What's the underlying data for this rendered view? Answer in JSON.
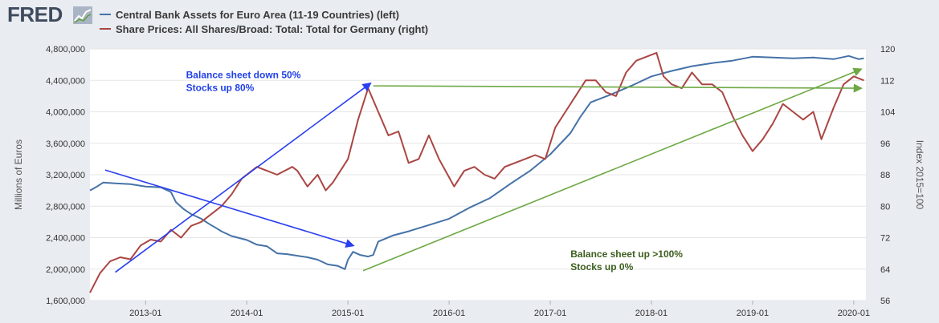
{
  "logo": {
    "text": "FRED"
  },
  "legend": [
    {
      "label": "Central Bank Assets for Euro Area (11-19 Countries) (left)",
      "color": "#4572a7"
    },
    {
      "label": "Share Prices: All Shares/Broad: Total: Total for Germany (right)",
      "color": "#aa4643"
    }
  ],
  "chart_data": {
    "type": "line",
    "ylabel_left": "Millions of Euros",
    "ylabel_right": "Index 2015=100",
    "xlim": [
      2012.45,
      2020.12
    ],
    "ylim_left": [
      1600000,
      4800000
    ],
    "ylim_right": [
      56,
      120
    ],
    "yticks_left": [
      1600000,
      2000000,
      2400000,
      2800000,
      3200000,
      3600000,
      4000000,
      4400000,
      4800000
    ],
    "yticks_left_labels": [
      "1,600,000",
      "2,000,000",
      "2,400,000",
      "2,800,000",
      "3,200,000",
      "3,600,000",
      "4,000,000",
      "4,400,000",
      "4,800,000"
    ],
    "yticks_right": [
      56,
      64,
      72,
      80,
      88,
      96,
      104,
      112,
      120
    ],
    "yticks_right_labels": [
      "56",
      "64",
      "72",
      "80",
      "88",
      "96",
      "104",
      "112",
      "120"
    ],
    "xticks": [
      2013,
      2014,
      2015,
      2016,
      2017,
      2018,
      2019,
      2020
    ],
    "xticks_labels": [
      "2013-01",
      "2014-01",
      "2015-01",
      "2016-01",
      "2017-01",
      "2018-01",
      "2019-01",
      "2020-01"
    ],
    "grid": true,
    "series": [
      {
        "name": "Central Bank Assets for Euro Area (11-19 Countries) (left)",
        "axis": "left",
        "color": "#4572a7",
        "points": [
          [
            2012.45,
            3000000
          ],
          [
            2012.52,
            3050000
          ],
          [
            2012.58,
            3100000
          ],
          [
            2012.7,
            3090000
          ],
          [
            2012.85,
            3080000
          ],
          [
            2013.0,
            3050000
          ],
          [
            2013.15,
            3040000
          ],
          [
            2013.25,
            2980000
          ],
          [
            2013.3,
            2850000
          ],
          [
            2013.38,
            2760000
          ],
          [
            2013.45,
            2700000
          ],
          [
            2013.55,
            2640000
          ],
          [
            2013.62,
            2580000
          ],
          [
            2013.7,
            2520000
          ],
          [
            2013.75,
            2480000
          ],
          [
            2013.85,
            2420000
          ],
          [
            2014.0,
            2370000
          ],
          [
            2014.1,
            2310000
          ],
          [
            2014.2,
            2290000
          ],
          [
            2014.3,
            2200000
          ],
          [
            2014.4,
            2190000
          ],
          [
            2014.5,
            2170000
          ],
          [
            2014.6,
            2150000
          ],
          [
            2014.7,
            2120000
          ],
          [
            2014.8,
            2060000
          ],
          [
            2014.9,
            2040000
          ],
          [
            2014.97,
            2000000
          ],
          [
            2015.0,
            2120000
          ],
          [
            2015.05,
            2220000
          ],
          [
            2015.12,
            2180000
          ],
          [
            2015.2,
            2160000
          ],
          [
            2015.25,
            2180000
          ],
          [
            2015.3,
            2350000
          ],
          [
            2015.45,
            2430000
          ],
          [
            2015.6,
            2480000
          ],
          [
            2015.8,
            2560000
          ],
          [
            2016.0,
            2640000
          ],
          [
            2016.2,
            2780000
          ],
          [
            2016.4,
            2900000
          ],
          [
            2016.6,
            3080000
          ],
          [
            2016.8,
            3250000
          ],
          [
            2017.0,
            3460000
          ],
          [
            2017.2,
            3730000
          ],
          [
            2017.3,
            3940000
          ],
          [
            2017.4,
            4120000
          ],
          [
            2017.6,
            4220000
          ],
          [
            2017.8,
            4330000
          ],
          [
            2018.0,
            4450000
          ],
          [
            2018.2,
            4520000
          ],
          [
            2018.4,
            4580000
          ],
          [
            2018.6,
            4620000
          ],
          [
            2018.8,
            4650000
          ],
          [
            2019.0,
            4700000
          ],
          [
            2019.2,
            4690000
          ],
          [
            2019.4,
            4680000
          ],
          [
            2019.6,
            4690000
          ],
          [
            2019.8,
            4670000
          ],
          [
            2019.95,
            4710000
          ],
          [
            2020.05,
            4670000
          ],
          [
            2020.1,
            4680000
          ]
        ]
      },
      {
        "name": "Share Prices: All Shares/Broad: Total: Total for Germany (right)",
        "axis": "right",
        "color": "#aa4643",
        "points": [
          [
            2012.45,
            58
          ],
          [
            2012.55,
            63
          ],
          [
            2012.65,
            66
          ],
          [
            2012.75,
            67
          ],
          [
            2012.85,
            66.5
          ],
          [
            2012.95,
            70
          ],
          [
            2013.05,
            71.5
          ],
          [
            2013.15,
            71
          ],
          [
            2013.25,
            74
          ],
          [
            2013.35,
            72
          ],
          [
            2013.45,
            75
          ],
          [
            2013.55,
            76
          ],
          [
            2013.65,
            78
          ],
          [
            2013.75,
            80
          ],
          [
            2013.85,
            83
          ],
          [
            2013.95,
            87
          ],
          [
            2014.1,
            90
          ],
          [
            2014.2,
            89
          ],
          [
            2014.3,
            88
          ],
          [
            2014.45,
            90
          ],
          [
            2014.5,
            89
          ],
          [
            2014.6,
            85
          ],
          [
            2014.7,
            88
          ],
          [
            2014.78,
            84
          ],
          [
            2014.85,
            86
          ],
          [
            2015.0,
            92
          ],
          [
            2015.1,
            102
          ],
          [
            2015.2,
            110
          ],
          [
            2015.3,
            104
          ],
          [
            2015.4,
            98
          ],
          [
            2015.5,
            99
          ],
          [
            2015.6,
            91
          ],
          [
            2015.7,
            92
          ],
          [
            2015.8,
            98
          ],
          [
            2015.9,
            92
          ],
          [
            2016.05,
            85
          ],
          [
            2016.15,
            89
          ],
          [
            2016.25,
            90
          ],
          [
            2016.35,
            88
          ],
          [
            2016.45,
            87
          ],
          [
            2016.55,
            90
          ],
          [
            2016.65,
            91
          ],
          [
            2016.75,
            92
          ],
          [
            2016.85,
            93
          ],
          [
            2016.95,
            92
          ],
          [
            2017.05,
            100
          ],
          [
            2017.15,
            104
          ],
          [
            2017.25,
            108
          ],
          [
            2017.35,
            112
          ],
          [
            2017.45,
            112
          ],
          [
            2017.55,
            109
          ],
          [
            2017.65,
            108
          ],
          [
            2017.75,
            114
          ],
          [
            2017.85,
            117
          ],
          [
            2017.95,
            118
          ],
          [
            2018.05,
            119
          ],
          [
            2018.12,
            113
          ],
          [
            2018.2,
            111
          ],
          [
            2018.3,
            110
          ],
          [
            2018.4,
            114
          ],
          [
            2018.5,
            111
          ],
          [
            2018.6,
            111
          ],
          [
            2018.7,
            109
          ],
          [
            2018.8,
            103
          ],
          [
            2018.9,
            98
          ],
          [
            2019.0,
            94
          ],
          [
            2019.1,
            97
          ],
          [
            2019.2,
            101
          ],
          [
            2019.3,
            106
          ],
          [
            2019.4,
            104
          ],
          [
            2019.5,
            102
          ],
          [
            2019.6,
            104
          ],
          [
            2019.68,
            97
          ],
          [
            2019.8,
            105
          ],
          [
            2019.9,
            111
          ],
          [
            2020.0,
            113
          ],
          [
            2020.1,
            112
          ]
        ]
      }
    ],
    "annotations": [
      {
        "lines": [
          "Balance sheet down 50%",
          "Stocks up 80%"
        ],
        "color": "#1f3fe8",
        "x": 2013.4,
        "y_left": 4430000
      },
      {
        "lines": [
          "Balance sheet up >100%",
          "Stocks up 0%"
        ],
        "color": "#3c5e1e",
        "x": 2017.2,
        "y_left": 2150000
      }
    ],
    "arrows": [
      {
        "color": "#2a3ff0",
        "axis": "left",
        "from": [
          2012.7,
          1960000
        ],
        "to": [
          2015.22,
          4360000
        ]
      },
      {
        "color": "#2a3ff0",
        "axis": "left",
        "from": [
          2012.6,
          3260000
        ],
        "to": [
          2015.05,
          2300000
        ]
      },
      {
        "color": "#6da844",
        "axis": "left",
        "from": [
          2015.25,
          4330000
        ],
        "to": [
          2020.07,
          4300000
        ]
      },
      {
        "color": "#6da844",
        "axis": "left",
        "from": [
          2015.15,
          1980000
        ],
        "to": [
          2020.07,
          4540000
        ]
      }
    ]
  }
}
